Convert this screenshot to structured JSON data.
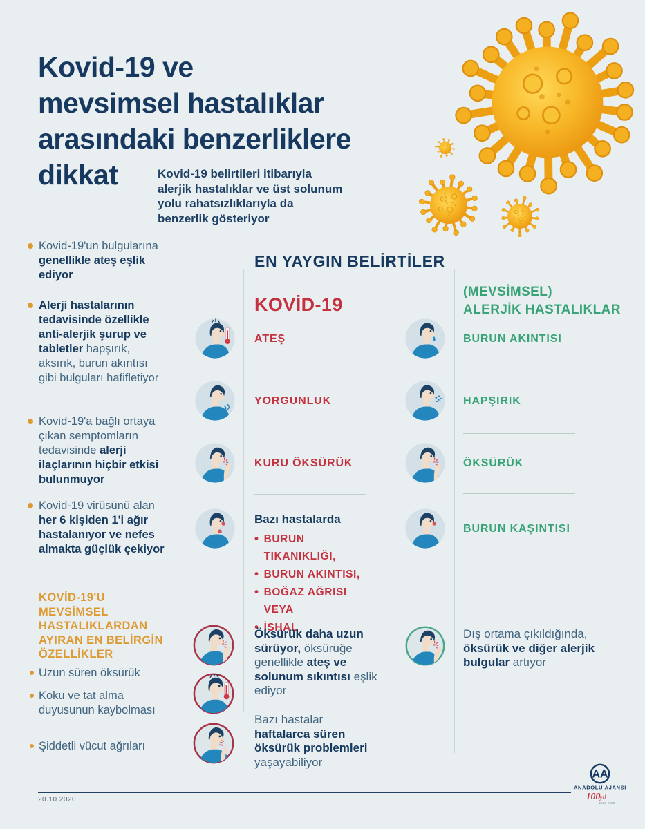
{
  "header": {
    "title_lines": [
      "Kovid-19 ve",
      "mevsimsel hastalıklar",
      "arasındaki benzerliklere",
      "dikkat"
    ],
    "subtitle": "Kovid-19 belirtileri itibarıyla alerjik hastalıklar ve üst solunum yolu rahatsızlıklarıyla da benzerlik gösteriyor",
    "illustration": "coronavirus-illustration"
  },
  "left_column": {
    "bullets": [
      {
        "segments": [
          {
            "text": "Kovid-19'un bulgularına ",
            "bold": false
          },
          {
            "text": "genellikle ateş eşlik ediyor",
            "bold": true
          }
        ]
      },
      {
        "segments": [
          {
            "text": "Alerji hastalarının tedavisinde özellikle anti-alerjik şurup ve tabletler",
            "bold": true
          },
          {
            "text": " hapşırık, aksırık, burun akıntısı gibi bulguları hafifletiyor",
            "bold": false
          }
        ]
      },
      {
        "segments": [
          {
            "text": "Kovid-19'a bağlı ortaya çıkan semptomların tedavisinde ",
            "bold": false
          },
          {
            "text": "alerji ilaçlarının hiçbir etkisi bulunmuyor",
            "bold": true
          }
        ]
      },
      {
        "segments": [
          {
            "text": "Kovid-19 virüsünü alan ",
            "bold": false
          },
          {
            "text": "her 6 kişiden 1'i ağır hastalanıyor ve nefes almakta güçlük çekiyor",
            "bold": true
          }
        ]
      }
    ],
    "highlight": {
      "title": "KOVİD-19'U MEVSİMSEL HASTALIKLARDAN AYIRAN EN BELİRGİN ÖZELLİKLER",
      "bullets": [
        "Uzun süren öksürük",
        "Koku ve tat alma duyusunun kaybolması",
        "Şiddetli vücut ağrıları"
      ]
    }
  },
  "symptoms": {
    "heading": "EN YAYGIN BELİRTİLER",
    "covid": {
      "title": "KOVİD-19",
      "rows": [
        {
          "icon": "person-fever-thermometer-icon",
          "label": "ATEŞ"
        },
        {
          "icon": "person-fatigue-icon",
          "label": "YORGUNLUK"
        },
        {
          "icon": "person-dry-cough-icon",
          "label": "KURU ÖKSÜRÜK"
        },
        {
          "icon": "person-congestion-sore-throat-icon",
          "label": "Bazı hastalarda",
          "sub_items": [
            "BURUN TIKANIKLIĞI,",
            "BURUN AKINTISI,",
            "BOĞAZ AĞRISI VEYA",
            "İSHAL"
          ]
        }
      ],
      "notes": [
        {
          "icons": [
            "person-long-cough-icon",
            "person-fever-thermometer-icon",
            "person-neck-ache-icon"
          ],
          "segments": [
            {
              "text": "Öksürük daha uzun sürüyor,",
              "bold": true
            },
            {
              "text": " öksürüğe genellikle ",
              "bold": false
            },
            {
              "text": "ateş ve solunum sıkıntısı",
              "bold": true
            },
            {
              "text": " eşlik ediyor",
              "bold": false
            }
          ]
        },
        {
          "segments": [
            {
              "text": "Bazı hastalar ",
              "bold": false
            },
            {
              "text": "haftalarca süren öksürük problemleri",
              "bold": true
            },
            {
              "text": " yaşayabiliyor",
              "bold": false
            }
          ]
        }
      ]
    },
    "allergy": {
      "title_lines": [
        "(MEVSİMSEL)",
        "ALERJİK HASTALIKLAR"
      ],
      "rows": [
        {
          "icon": "person-runny-nose-icon",
          "label": "BURUN AKINTISI"
        },
        {
          "icon": "person-sneezing-icon",
          "label": "HAPŞIRIK"
        },
        {
          "icon": "person-coughing-icon",
          "label": "ÖKSÜRÜK"
        },
        {
          "icon": "person-itchy-nose-icon",
          "label": "BURUN KAŞINTISI"
        }
      ],
      "note": {
        "icon": "person-cough-outdoor-icon",
        "segments": [
          {
            "text": "Dış ortama çıkıldığında, ",
            "bold": false
          },
          {
            "text": "öksürük ve diğer alerjik bulgular",
            "bold": true
          },
          {
            "text": " artıyor",
            "bold": false
          }
        ]
      }
    }
  },
  "footer": {
    "date": "20.10.2020",
    "logo": {
      "initials": "AA",
      "name": "ANADOLU AJANSI",
      "centenary_number": "100",
      "centenary_suffix": "yıl",
      "centenary_years": "1920-2020"
    }
  },
  "colors": {
    "background": "#e9eff1",
    "navy": "#17395f",
    "body_text": "#40647f",
    "covid_red": "#c5313f",
    "allergy_green": "#38a377",
    "highlight_orange": "#dd9a33",
    "icon_circle": "#d3e0e7",
    "shirt_blue": "#2387bd",
    "virus_gold": "#f2a91f",
    "covid_ring": "#a73449",
    "allergy_ring": "#4da58c"
  }
}
